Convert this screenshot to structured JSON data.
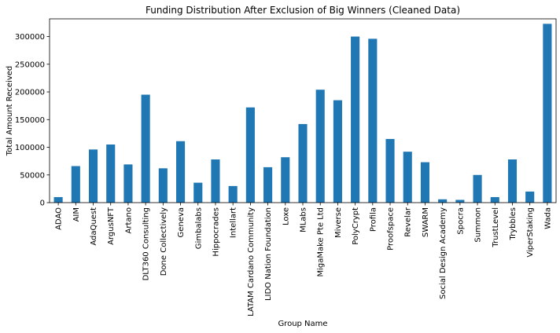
{
  "chart_data": {
    "type": "bar",
    "title": "Funding Distribution After Exclusion of Big Winners (Cleaned Data)",
    "xlabel": "Group Name",
    "ylabel": "Total Amount Received",
    "ylim": [
      0,
      332000
    ],
    "yticks": [
      0,
      50000,
      100000,
      150000,
      200000,
      250000,
      300000
    ],
    "grid": false,
    "bar_color": "#1f77b4",
    "categories": [
      "ADAO",
      "AIM",
      "AdaQuest",
      "ArgusNFT",
      "Artano",
      "DLT360 Consulting",
      "Done Collectively",
      "Geneva",
      "Gimbalabs",
      "Hippocrades",
      "Intellart",
      "LATAM Cardano Community",
      "LIDO Nation Foundation",
      "Loxe",
      "MLabs",
      "MigaMake Pte Ltd",
      "Miverse",
      "PolyCrypt",
      "Profila",
      "Proofspace",
      "Revelar",
      "SWARM",
      "Social Design Academy",
      "Spocra",
      "Summon",
      "TrustLevel",
      "Trybbles",
      "ViperStaking",
      "Wada"
    ],
    "values": [
      10000,
      66000,
      96000,
      105000,
      69000,
      195000,
      62000,
      111000,
      36000,
      78000,
      30000,
      172000,
      64000,
      82000,
      142000,
      204000,
      185000,
      300000,
      296000,
      115000,
      92000,
      73000,
      6000,
      5000,
      50000,
      10000,
      78000,
      20000,
      323000
    ]
  }
}
